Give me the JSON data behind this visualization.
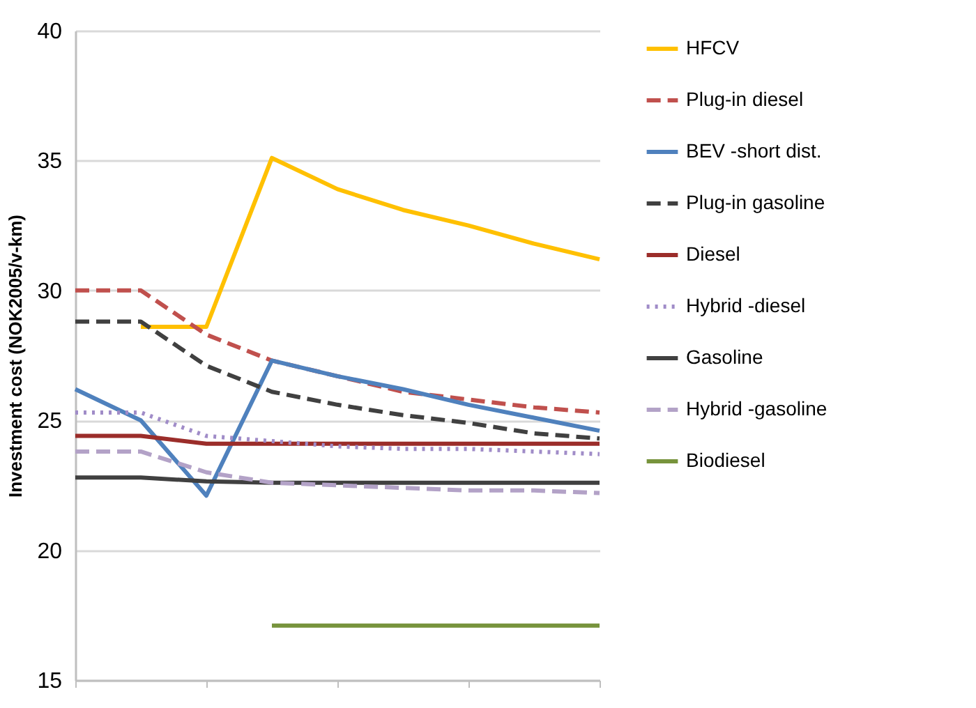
{
  "chart_data": {
    "type": "line",
    "ylabel": "Investment cost (NOK2005/v-km)",
    "categories": [
      null,
      null,
      null,
      null,
      null,
      null,
      null,
      null,
      null
    ],
    "ylim": [
      15,
      40
    ],
    "yticks": [
      15,
      20,
      25,
      30,
      35,
      40
    ],
    "grid": "y",
    "legend": "right",
    "marker": "none",
    "series": [
      {
        "name": "HFCV",
        "color": "#ffc000",
        "line_style": "solid",
        "values": [
          null,
          28.6,
          28.6,
          35.1,
          33.9,
          33.1,
          32.5,
          31.8,
          31.2
        ]
      },
      {
        "name": "Plug-in diesel",
        "color": "#c0504d",
        "line_style": "dashed",
        "values": [
          30.0,
          30.0,
          28.3,
          27.3,
          26.7,
          26.1,
          25.8,
          25.5,
          25.3
        ]
      },
      {
        "name": "BEV -short dist.",
        "color": "#4f81bd",
        "line_style": "solid",
        "values": [
          26.2,
          25.0,
          22.1,
          27.3,
          26.7,
          26.2,
          25.6,
          25.1,
          24.6
        ]
      },
      {
        "name": "Plug-in gasoline",
        "color": "#404040",
        "line_style": "dashed",
        "values": [
          28.8,
          28.8,
          27.1,
          26.1,
          25.6,
          25.2,
          24.9,
          24.5,
          24.3
        ]
      },
      {
        "name": "Diesel",
        "color": "#9b2d2a",
        "line_style": "solid",
        "values": [
          24.4,
          24.4,
          24.1,
          24.1,
          24.1,
          24.1,
          24.1,
          24.1,
          24.1
        ]
      },
      {
        "name": "Hybrid -diesel",
        "color": "#a08cc8",
        "line_style": "dotted",
        "values": [
          25.3,
          25.3,
          24.4,
          24.2,
          24.0,
          23.9,
          23.9,
          23.8,
          23.7
        ]
      },
      {
        "name": "Gasoline",
        "color": "#404040",
        "line_style": "solid",
        "values": [
          22.8,
          22.8,
          22.65,
          22.6,
          22.6,
          22.6,
          22.6,
          22.6,
          22.6
        ]
      },
      {
        "name": "Hybrid -gasoline",
        "color": "#b3a2c7",
        "line_style": "dashed",
        "values": [
          23.8,
          23.8,
          23.0,
          22.6,
          22.5,
          22.4,
          22.3,
          22.3,
          22.2
        ]
      },
      {
        "name": "Biodiesel",
        "color": "#77933c",
        "line_style": "solid",
        "values": [
          null,
          null,
          null,
          17.1,
          17.1,
          17.1,
          17.1,
          17.1,
          17.1
        ]
      }
    ]
  }
}
